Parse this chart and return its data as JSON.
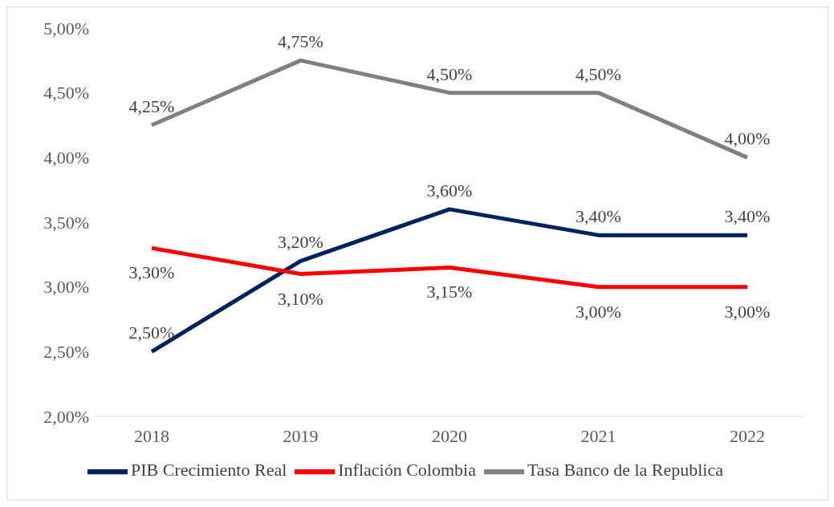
{
  "chart_data": {
    "type": "line",
    "categories": [
      "2018",
      "2019",
      "2020",
      "2021",
      "2022"
    ],
    "series": [
      {
        "name": "PIB Crecimiento Real",
        "color": "#002060",
        "values": [
          2.5,
          3.2,
          3.6,
          3.4,
          3.4
        ],
        "value_labels": [
          "2,50%",
          "3,20%",
          "3,60%",
          "3,40%",
          "3,40%"
        ]
      },
      {
        "name": "Inflación Colombia",
        "color": "#ff0000",
        "values": [
          3.3,
          3.1,
          3.15,
          3.0,
          3.0
        ],
        "value_labels": [
          "3,30%",
          "3,10%",
          "3,15%",
          "3,00%",
          "3,00%"
        ]
      },
      {
        "name": "Tasa Banco de la Republica",
        "color": "#808080",
        "values": [
          4.25,
          4.75,
          4.5,
          4.5,
          4.0
        ],
        "value_labels": [
          "4,25%",
          "4,75%",
          "4,50%",
          "4,50%",
          "4,00%"
        ]
      }
    ],
    "ylim": [
      2,
      5
    ],
    "yticks": [
      {
        "value": 2,
        "label": "2,00%"
      },
      {
        "value": 2.5,
        "label": "2,50%"
      },
      {
        "value": 3,
        "label": "3,00%"
      },
      {
        "value": 3.5,
        "label": "3,50%"
      },
      {
        "value": 4,
        "label": "4,00%"
      },
      {
        "value": 4.5,
        "label": "4,50%"
      },
      {
        "value": 5,
        "label": "5,00%"
      }
    ],
    "grid": false,
    "legend": "bottom",
    "marker": "none",
    "line_style": "solid"
  }
}
